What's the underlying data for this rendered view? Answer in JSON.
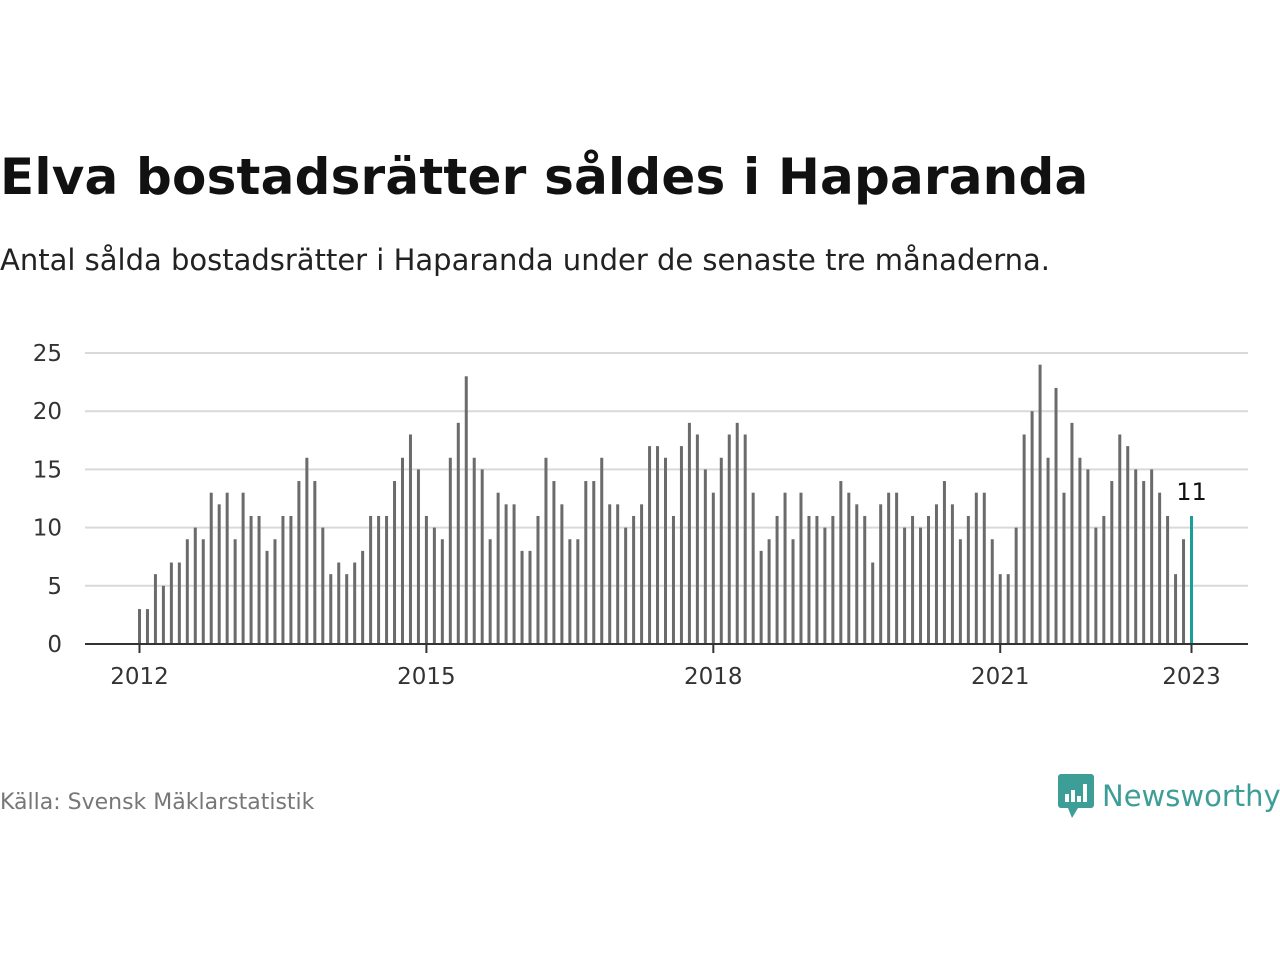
{
  "colors": {
    "bar": "#6b6b6b",
    "highlight": "#1a9e99",
    "grid": "#d9d9d9",
    "axis": "#333333",
    "brand": "#3d9e98"
  },
  "source": "Källa: Svensk Mäklarstatistik",
  "brand": {
    "name": "Newsworthy",
    "icon": "bar-chart-speech-bubble-icon"
  },
  "chart_data": {
    "type": "bar",
    "title": "Elva bostadsrätter såldes i Haparanda",
    "subtitle": "Antal sålda bostadsrätter i Haparanda under de senaste tre månaderna.",
    "xlabel": "",
    "ylabel": "",
    "ylim": [
      0,
      25
    ],
    "yticks": [
      0,
      5,
      10,
      15,
      20,
      25
    ],
    "xticks": [
      2012,
      2015,
      2018,
      2021,
      2023
    ],
    "grid": true,
    "x_start": "2012-01",
    "x_end": "2023-01",
    "values": [
      3,
      3,
      6,
      5,
      7,
      7,
      9,
      10,
      9,
      13,
      12,
      13,
      9,
      13,
      11,
      11,
      8,
      9,
      11,
      11,
      14,
      16,
      14,
      10,
      6,
      7,
      6,
      7,
      8,
      11,
      11,
      11,
      14,
      16,
      18,
      15,
      11,
      10,
      9,
      16,
      19,
      23,
      16,
      15,
      9,
      13,
      12,
      12,
      8,
      8,
      11,
      16,
      14,
      12,
      9,
      9,
      14,
      14,
      16,
      12,
      12,
      10,
      11,
      12,
      17,
      17,
      16,
      11,
      17,
      19,
      18,
      15,
      13,
      16,
      18,
      19,
      18,
      13,
      8,
      9,
      11,
      13,
      9,
      13,
      11,
      11,
      10,
      11,
      14,
      13,
      12,
      11,
      7,
      12,
      13,
      13,
      10,
      11,
      10,
      11,
      12,
      14,
      12,
      9,
      11,
      13,
      13,
      9,
      6,
      6,
      10,
      18,
      20,
      24,
      16,
      22,
      13,
      19,
      16,
      15,
      10,
      11,
      14,
      18,
      17,
      15,
      14,
      15,
      13,
      11,
      6,
      9,
      11
    ],
    "highlight": {
      "value": 11,
      "label": "11"
    }
  }
}
